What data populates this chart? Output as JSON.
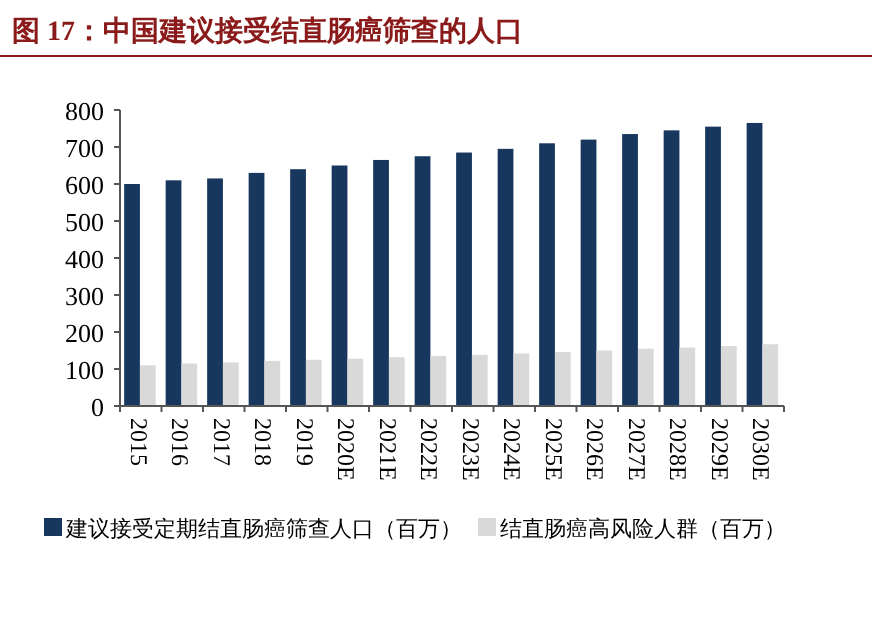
{
  "chart_data": {
    "type": "bar",
    "title": "图 17：中国建议接受结直肠癌筛查的人口",
    "categories": [
      "2015",
      "2016",
      "2017",
      "2018",
      "2019",
      "2020E",
      "2021E",
      "2022E",
      "2023E",
      "2024E",
      "2025E",
      "2026E",
      "2027E",
      "2028E",
      "2029E",
      "2030E"
    ],
    "series": [
      {
        "name": "建议接受定期结直肠癌筛查人口（百万）",
        "color": "#17375e",
        "values": [
          600,
          610,
          615,
          630,
          640,
          650,
          665,
          675,
          685,
          695,
          710,
          720,
          735,
          745,
          755,
          765
        ]
      },
      {
        "name": "结直肠癌高风险人群（百万）",
        "color": "#d9d9d9",
        "values": [
          110,
          115,
          118,
          122,
          125,
          128,
          132,
          135,
          138,
          142,
          146,
          150,
          155,
          158,
          162,
          167
        ]
      }
    ],
    "ylim": [
      0,
      800
    ],
    "yticks": [
      0,
      100,
      200,
      300,
      400,
      500,
      600,
      700,
      800
    ],
    "grid": false,
    "legend": "bottom"
  }
}
